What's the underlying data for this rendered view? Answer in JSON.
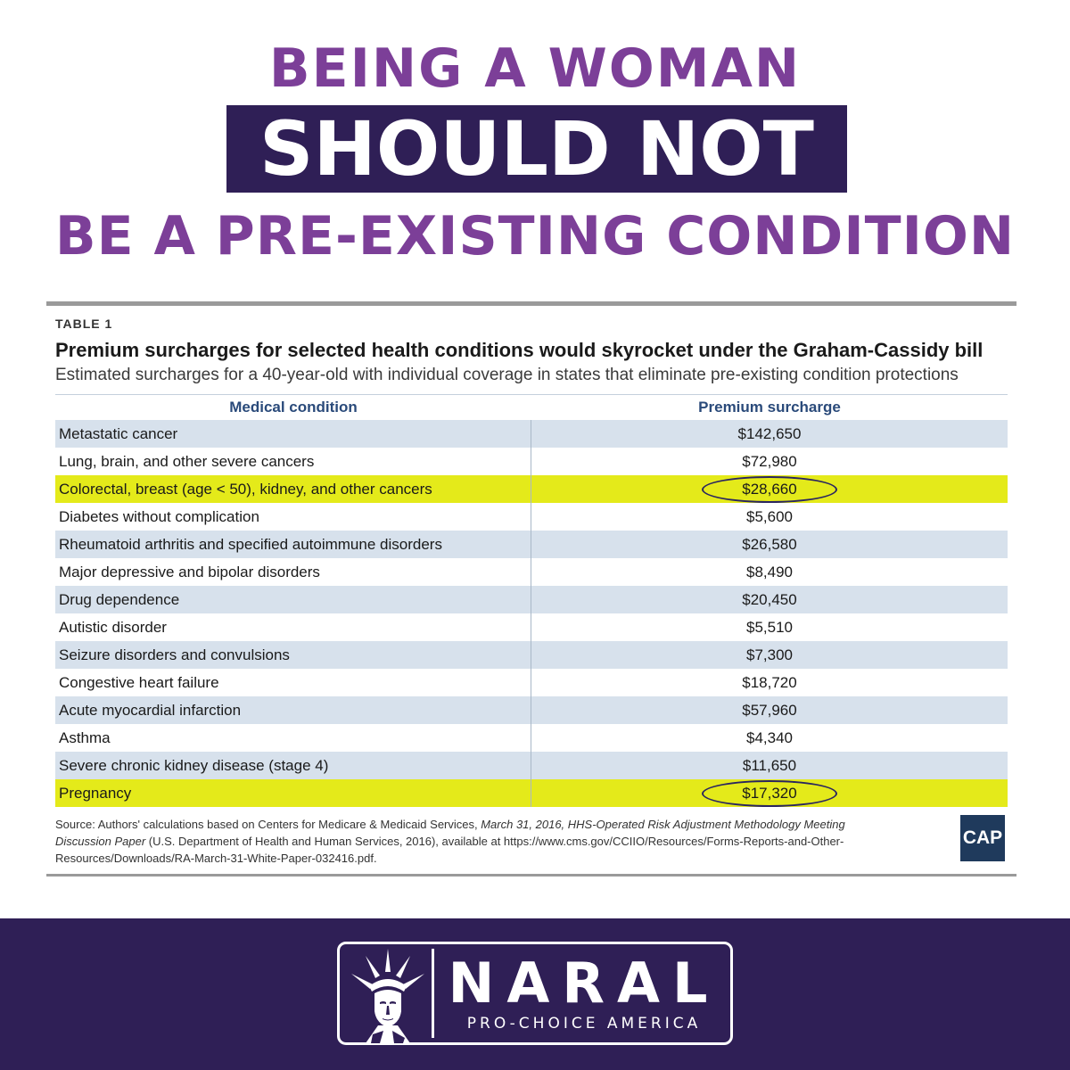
{
  "headline": {
    "line1": "BEING A WOMAN",
    "line2": "SHOULD NOT",
    "line3": "BE A PRE-EXISTING CONDITION"
  },
  "table": {
    "label": "TABLE 1",
    "title": "Premium surcharges for selected health conditions would skyrocket under the Graham-Cassidy bill",
    "subtitle": "Estimated surcharges for a 40-year-old with individual coverage in states that eliminate pre-existing condition protections",
    "columns": [
      "Medical condition",
      "Premium surcharge"
    ],
    "rows": [
      {
        "condition": "Metastatic cancer",
        "surcharge": "$142,650"
      },
      {
        "condition": "Lung, brain, and other severe cancers",
        "surcharge": "$72,980"
      },
      {
        "condition": "Colorectal, breast (age < 50), kidney, and other cancers",
        "surcharge": "$28,660"
      },
      {
        "condition": "Diabetes without complication",
        "surcharge": "$5,600"
      },
      {
        "condition": "Rheumatoid arthritis and specified autoimmune disorders",
        "surcharge": "$26,580"
      },
      {
        "condition": "Major depressive and bipolar disorders",
        "surcharge": "$8,490"
      },
      {
        "condition": "Drug dependence",
        "surcharge": "$20,450"
      },
      {
        "condition": "Autistic disorder",
        "surcharge": "$5,510"
      },
      {
        "condition": "Seizure disorders and convulsions",
        "surcharge": "$7,300"
      },
      {
        "condition": "Congestive heart failure",
        "surcharge": "$18,720"
      },
      {
        "condition": "Acute myocardial infarction",
        "surcharge": "$57,960"
      },
      {
        "condition": "Asthma",
        "surcharge": "$4,340"
      },
      {
        "condition": "Severe chronic kidney disease (stage 4)",
        "surcharge": "$11,650"
      },
      {
        "condition": "Pregnancy",
        "surcharge": "$17,320"
      }
    ],
    "source_prefix": "Source: Authors' calculations based on Centers for Medicare & Medicaid Services, ",
    "source_italic": "March 31, 2016, HHS-Operated Risk Adjustment Methodology Meeting Discussion Paper",
    "source_suffix": " (U.S. Department of Health and Human Services, 2016), available at https://www.cms.gov/CCIIO/Resources/Forms-Reports-and-Other-Resources/Downloads/RA-March-31-White-Paper-032416.pdf.",
    "cap_logo": "CAP"
  },
  "colors": {
    "purple": "#7c3f98",
    "dark_purple": "#2f1f56",
    "highlight": "#e4ea1a",
    "row_blue": "#d7e1ec"
  },
  "footer": {
    "brand": "NARAL",
    "tagline": "PRO-CHOICE AMERICA",
    "icon": "statue-of-liberty-icon"
  }
}
